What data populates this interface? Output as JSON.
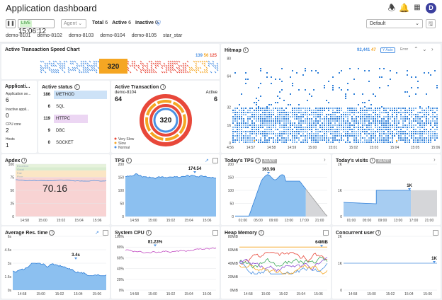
{
  "app": {
    "title": "Application dashboard"
  },
  "toolbar": {
    "live_tag": "LIVE",
    "time": "15:06:12",
    "agent_placeholder": "Agent",
    "total_label": "Total",
    "total_value": "6",
    "active_label": "Active",
    "active_value": "6",
    "inactive_label": "Inactive",
    "inactive_value": "0",
    "preset": "Default"
  },
  "agents": [
    "demo-8101",
    "demo-8102",
    "demo-8103",
    "demo-8104",
    "demo-8105",
    "star_star"
  ],
  "speed": {
    "title": "Active Transaction Speed Chart",
    "count": "320",
    "c1": "139",
    "c2": "56",
    "c3": "125",
    "colors": {
      "normal": "#4a90e2",
      "slow": "#f5a623",
      "very_slow": "#e8483a"
    }
  },
  "app_panel": {
    "title": "Applicati...",
    "items": [
      {
        "label": "Application se...",
        "value": "6"
      },
      {
        "label": "Inactive appli...",
        "value": "0"
      },
      {
        "label": "CPU core",
        "value": "2"
      },
      {
        "label": "Hosts",
        "value": "1"
      }
    ]
  },
  "active_status": {
    "title": "Active status",
    "rows": [
      {
        "n": "186",
        "label": "METHOD",
        "color": "#cde2f7"
      },
      {
        "n": "6",
        "label": "SQL",
        "color": "#fff"
      },
      {
        "n": "119",
        "label": "HTTPC",
        "color": "#ecd6f3"
      },
      {
        "n": "9",
        "label": "DBC",
        "color": "#fff"
      },
      {
        "n": "0",
        "label": "SOCKET",
        "color": "#fff"
      }
    ]
  },
  "active_tx": {
    "title": "Active Transaction",
    "agent": "demo-8104",
    "agent_value": "64",
    "right_label": "Active",
    "right_value": "6",
    "center": "320",
    "legend": [
      "Very Slow",
      "Slow",
      "Normal"
    ],
    "donut": {
      "very_slow": 0.55,
      "slow": 0.3,
      "normal": 0.15
    }
  },
  "hitmap": {
    "title": "Hitmap",
    "n1": "92,441",
    "n2": "47",
    "auto": "Y Auto",
    "error": "Error",
    "yticks": [
      "80",
      "64",
      "32",
      "16",
      "0"
    ],
    "xticks": [
      "4:56",
      "14:57",
      "14:58",
      "14:59",
      "15:00",
      "15:01",
      "15:02",
      "15:03",
      "15:04",
      "15:05",
      "15:06"
    ]
  },
  "apdex": {
    "title": "Apdex",
    "value": "70.16",
    "yticks": [
      "100",
      "75",
      "50",
      "25",
      "0"
    ],
    "xticks": [
      "14:58",
      "15:00",
      "15:02",
      "15:04",
      "15:06"
    ],
    "zones": [
      "Excellent",
      "Good",
      "Fair",
      "Poor"
    ]
  },
  "tps": {
    "title": "TPS",
    "peak": "174.54",
    "yticks": [
      "200",
      "150",
      "100",
      "50",
      "0"
    ],
    "xticks": [
      "14:58",
      "15:00",
      "15:02",
      "15:04",
      "15:06"
    ]
  },
  "today_tps": {
    "title": "Today's TPS",
    "tag": "All APP",
    "peak": "163.98",
    "yticks": [
      "200",
      "150",
      "100",
      "50",
      "0"
    ],
    "xticks": [
      "01:00",
      "05:00",
      "09:00",
      "13:00",
      "17:00",
      "21:00"
    ]
  },
  "today_visits": {
    "title": "Today's visits",
    "tag": "All APP",
    "peak": "1K",
    "yticks": [
      "2K",
      "1K",
      "0"
    ],
    "xticks": [
      "01:00",
      "05:00",
      "09:00",
      "13:00",
      "17:00",
      "21:00"
    ]
  },
  "avg_res": {
    "title": "Average Res. time",
    "peak": "3.4s",
    "yticks": [
      "6s",
      "4.5s",
      "3s",
      "1.5s",
      "0s"
    ],
    "xticks": [
      "14:58",
      "15:00",
      "15:02",
      "15:04",
      "15:06"
    ]
  },
  "cpu": {
    "title": "System CPU",
    "peak": "81.23%",
    "yticks": [
      "100%",
      "80%",
      "60%",
      "40%",
      "20%",
      "0%"
    ],
    "xticks": [
      "14:58",
      "15:00",
      "15:02",
      "15:04",
      "15:06"
    ]
  },
  "heap": {
    "title": "Heap Memory",
    "peak": "64MiB",
    "yticks": [
      "80MiB",
      "60MiB",
      "40MiB",
      "20MiB",
      "0MiB"
    ],
    "xticks": [
      "14:58",
      "15:00",
      "15:02",
      "15:04",
      "15:06"
    ]
  },
  "concurrent": {
    "title": "Concurrent user",
    "peak": "1K",
    "yticks": [
      "2K",
      "1K",
      "0"
    ],
    "xticks": [
      "14:58",
      "15:00",
      "15:02",
      "15:04",
      "15:06"
    ]
  }
}
